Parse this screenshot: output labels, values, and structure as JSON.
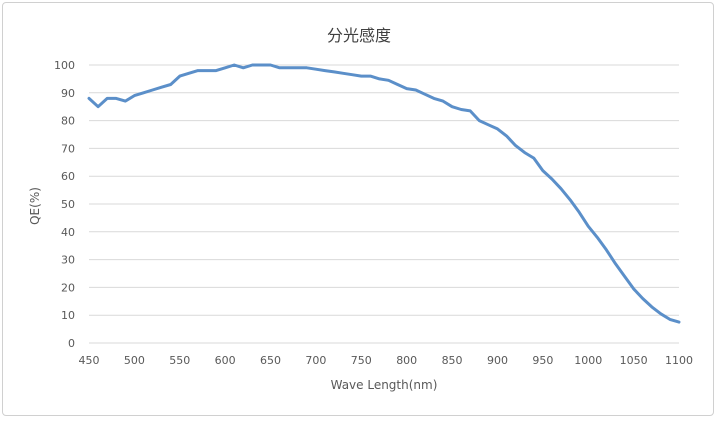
{
  "chart_data": {
    "type": "line",
    "title": "分光感度",
    "xlabel": "Wave Length(nm)",
    "ylabel": "QE(%)",
    "xlim": [
      450,
      1100
    ],
    "ylim": [
      0,
      100
    ],
    "x_ticks": [
      "450",
      "500",
      "550",
      "600",
      "650",
      "700",
      "750",
      "800",
      "850",
      "900",
      "950",
      "1000",
      "1050",
      "1100"
    ],
    "y_ticks": [
      "0",
      "10",
      "20",
      "30",
      "40",
      "50",
      "60",
      "70",
      "80",
      "90",
      "100"
    ],
    "grid": "horizontal",
    "legend": "none",
    "series": [
      {
        "color": "#5b8fc9",
        "x": [
          450,
          460,
          470,
          480,
          490,
          500,
          510,
          520,
          530,
          540,
          550,
          560,
          570,
          580,
          590,
          600,
          610,
          620,
          630,
          640,
          650,
          660,
          670,
          680,
          690,
          700,
          710,
          720,
          730,
          740,
          750,
          760,
          770,
          780,
          790,
          800,
          810,
          820,
          830,
          840,
          850,
          860,
          870,
          880,
          890,
          900,
          910,
          920,
          930,
          940,
          950,
          960,
          970,
          980,
          990,
          1000,
          1010,
          1020,
          1030,
          1040,
          1050,
          1060,
          1070,
          1080,
          1090,
          1100
        ],
        "values": [
          88,
          85,
          88,
          88,
          87,
          89,
          90,
          91,
          92,
          93,
          96,
          97,
          98,
          98,
          98,
          99,
          100,
          99,
          100,
          100,
          100,
          99,
          99,
          99,
          99,
          98.5,
          98,
          97.5,
          97,
          96.5,
          96,
          96,
          95,
          94.5,
          93,
          91.5,
          91,
          89.5,
          88,
          87,
          85,
          84,
          83.5,
          80,
          78.5,
          77,
          74.5,
          71,
          68.5,
          66.5,
          62,
          59,
          55.5,
          51.5,
          47,
          42,
          38,
          33.5,
          28.5,
          24,
          19.5,
          16,
          13,
          10.5,
          8.5,
          7.5
        ]
      }
    ]
  }
}
